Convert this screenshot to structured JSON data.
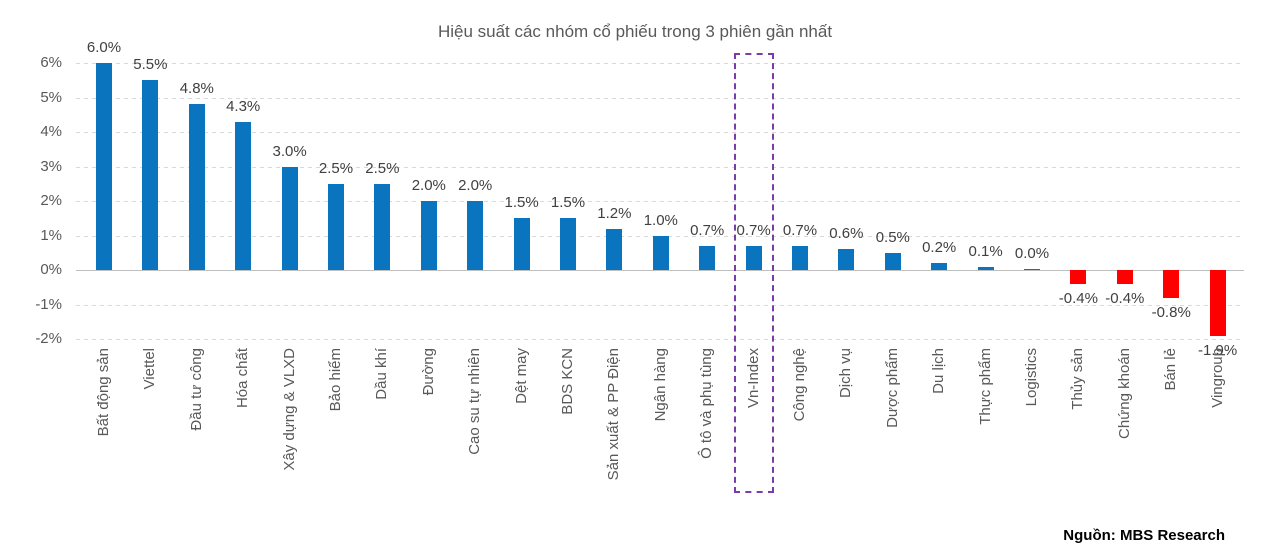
{
  "source": {
    "label": "Nguồn: MBS Research"
  },
  "chart_data": {
    "type": "bar",
    "title": "Hiệu suất các nhóm cổ phiếu trong 3 phiên gần nhất",
    "categories": [
      "Bất động sản",
      "Viettel",
      "Đầu tư công",
      "Hóa chất",
      "Xây dựng & VLXD",
      "Bảo hiểm",
      "Dầu khí",
      "Đường",
      "Cao su tự nhiên",
      "Dệt may",
      "BDS KCN",
      "Sản xuất & PP Điện",
      "Ngân hàng",
      "Ô tô và phụ tùng",
      "Vn-Index",
      "Công nghệ",
      "Dịch vụ",
      "Dược phẩm",
      "Du lịch",
      "Thực phẩm",
      "Logistics",
      "Thủy sản",
      "Chứng khoán",
      "Bán lẻ",
      "Vingroup"
    ],
    "values": [
      6.0,
      5.5,
      4.8,
      4.3,
      3.0,
      2.5,
      2.5,
      2.0,
      2.0,
      1.5,
      1.5,
      1.2,
      1.0,
      0.7,
      0.7,
      0.7,
      0.6,
      0.5,
      0.2,
      0.1,
      0.0,
      -0.4,
      -0.4,
      -0.8,
      -1.9
    ],
    "value_labels": [
      "6.0%",
      "5.5%",
      "4.8%",
      "4.3%",
      "3.0%",
      "2.5%",
      "2.5%",
      "2.0%",
      "2.0%",
      "1.5%",
      "1.5%",
      "1.2%",
      "1.0%",
      "0.7%",
      "0.7%",
      "0.7%",
      "0.6%",
      "0.5%",
      "0.2%",
      "0.1%",
      "0.0%",
      "-0.4%",
      "-0.4%",
      "-0.8%",
      "-1.9%"
    ],
    "highlight_category": "Vn-Index",
    "highlight_index": 14,
    "ylim": [
      -2,
      6
    ],
    "ytick_interval": 1,
    "ytick_labels": [
      "6%",
      "5%",
      "4%",
      "3%",
      "2%",
      "1%",
      "0%",
      "-1%",
      "-2%"
    ],
    "grid": "horizontal-dashed",
    "legend": "none",
    "colors": {
      "positive_bar": "#0b74be",
      "negative_bar": "#ff0000",
      "highlight_box": "#7a3ca8",
      "title_text": "#595959",
      "axis_text": "#595959",
      "value_text": "#404040",
      "gridline": "#d9d9d9",
      "zero_line": "#bfbfbf"
    }
  }
}
